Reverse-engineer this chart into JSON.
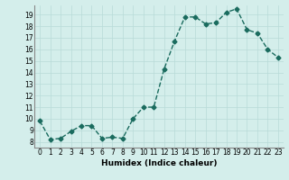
{
  "x_data": [
    0,
    1,
    2,
    3,
    4,
    5,
    6,
    7,
    8,
    9,
    10,
    11,
    12,
    13,
    14,
    15,
    16,
    17,
    18,
    19,
    20,
    21,
    22,
    23
  ],
  "y_data": [
    9.8,
    8.2,
    8.3,
    8.9,
    9.4,
    9.4,
    8.3,
    8.4,
    8.3,
    10.0,
    11.0,
    11.0,
    14.3,
    16.7,
    18.8,
    18.8,
    18.2,
    18.3,
    19.2,
    19.5,
    17.7,
    17.4,
    16.0,
    15.3
  ],
  "xlabel": "Humidex (Indice chaleur)",
  "ylim": [
    7.5,
    19.8
  ],
  "xlim": [
    -0.5,
    23.5
  ],
  "yticks": [
    8,
    9,
    10,
    11,
    12,
    13,
    14,
    15,
    16,
    17,
    18,
    19
  ],
  "xticks": [
    0,
    1,
    2,
    3,
    4,
    5,
    6,
    7,
    8,
    9,
    10,
    11,
    12,
    13,
    14,
    15,
    16,
    17,
    18,
    19,
    20,
    21,
    22,
    23
  ],
  "line_color": "#1a6b5e",
  "bg_color": "#d4eeeb",
  "grid_color": "#b8dbd8",
  "marker": "D",
  "marker_size": 2.5,
  "linewidth": 1.0
}
